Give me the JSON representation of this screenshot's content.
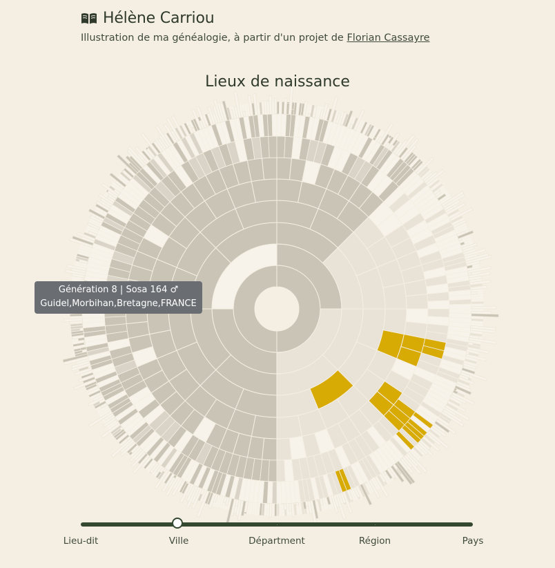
{
  "header": {
    "title": "Hélène Carriou",
    "subtitle_prefix": "Illustration de ma généalogie, à partir d'un projet de ",
    "subtitle_link": "Florian Cassayre",
    "icon": "open-book-icon"
  },
  "tooltip": {
    "line1": "Génération 8 | Sosa 164 ♂",
    "line2": "Guidel,Morbihan,Bretagne,FRANCE"
  },
  "slider": {
    "labels": [
      "Lieu-dit",
      "Ville",
      "Départment",
      "Région",
      "Pays"
    ],
    "selected_index": 1
  },
  "colors": {
    "background": "#f4efe2",
    "accent": "#d8aa04",
    "known_dark": "#c9c4b6",
    "known_light": "#e8e3d6",
    "unknown": "#f7f3ea",
    "slider": "#34482f"
  },
  "chart_data": {
    "type": "fan",
    "title": "Lieux de naissance",
    "generations": 10,
    "highlighted_sosa": 164,
    "highlighted_generation": 8,
    "highlighted_place": "Guidel,Morbihan,Bretagne,FRANCE"
  }
}
